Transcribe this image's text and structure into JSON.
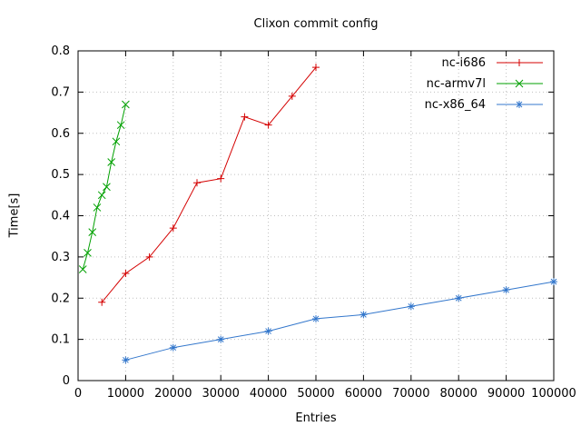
{
  "window": {
    "background": "#ffffff"
  },
  "chart_data": {
    "type": "line",
    "title": "Clixon commit config",
    "xlabel": "Entries",
    "ylabel": "Time[s]",
    "xlim": [
      0,
      100000
    ],
    "ylim": [
      0,
      0.8
    ],
    "xticks": [
      0,
      10000,
      20000,
      30000,
      40000,
      50000,
      60000,
      70000,
      80000,
      90000,
      100000
    ],
    "xtick_labels": [
      "0",
      "10000",
      "20000",
      "30000",
      "40000",
      "50000",
      "60000",
      "70000",
      "80000",
      "90000",
      "100000"
    ],
    "yticks": [
      0,
      0.1,
      0.2,
      0.3,
      0.4,
      0.5,
      0.6,
      0.7,
      0.8
    ],
    "ytick_labels": [
      "0",
      "0.1",
      "0.2",
      "0.3",
      "0.4",
      "0.5",
      "0.6",
      "0.7",
      "0.8"
    ],
    "grid": true,
    "legend_position": "top-right-inside",
    "grid_color": "#c0c0c0",
    "border_color": "#000000",
    "text_color": "#000000",
    "series": [
      {
        "name": "nc-i686",
        "color": "#d40000",
        "marker": "plus",
        "x": [
          5000,
          10000,
          15000,
          20000,
          25000,
          30000,
          35000,
          40000,
          45000,
          50000
        ],
        "y": [
          0.19,
          0.26,
          0.3,
          0.37,
          0.48,
          0.49,
          0.64,
          0.62,
          0.69,
          0.76
        ]
      },
      {
        "name": "nc-armv7l",
        "color": "#00a000",
        "marker": "cross",
        "x": [
          1000,
          2000,
          3000,
          4000,
          5000,
          6000,
          7000,
          8000,
          9000,
          10000
        ],
        "y": [
          0.27,
          0.31,
          0.36,
          0.42,
          0.45,
          0.47,
          0.53,
          0.58,
          0.62,
          0.67
        ]
      },
      {
        "name": "nc-x86_64",
        "color": "#3377cc",
        "marker": "star",
        "x": [
          10000,
          20000,
          30000,
          40000,
          50000,
          60000,
          70000,
          80000,
          90000,
          100000
        ],
        "y": [
          0.05,
          0.08,
          0.1,
          0.12,
          0.15,
          0.16,
          0.18,
          0.2,
          0.22,
          0.24
        ]
      }
    ]
  }
}
